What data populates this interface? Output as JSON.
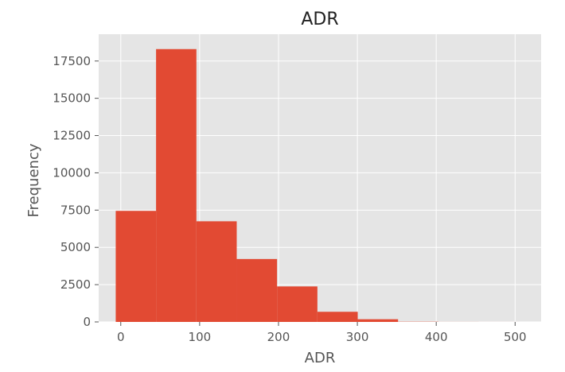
{
  "chart_data": {
    "type": "bar",
    "title": "ADR",
    "xlabel": "ADR",
    "ylabel": "Frequency",
    "xlim": [
      -28,
      533
    ],
    "ylim": [
      0,
      19300
    ],
    "xticks": [
      0,
      100,
      200,
      300,
      400,
      500
    ],
    "yticks": [
      0,
      2500,
      5000,
      7500,
      10000,
      12500,
      15000,
      17500
    ],
    "bins": [
      {
        "x0": -6.38,
        "x1": 44.76,
        "count": 7450
      },
      {
        "x0": 44.76,
        "x1": 95.9,
        "count": 18300
      },
      {
        "x0": 95.9,
        "x1": 147.04,
        "count": 6750
      },
      {
        "x0": 147.04,
        "x1": 198.18,
        "count": 4220
      },
      {
        "x0": 198.18,
        "x1": 249.32,
        "count": 2380
      },
      {
        "x0": 249.32,
        "x1": 300.46,
        "count": 680
      },
      {
        "x0": 300.46,
        "x1": 351.6,
        "count": 180
      },
      {
        "x0": 351.6,
        "x1": 402.74,
        "count": 15
      },
      {
        "x0": 402.74,
        "x1": 453.88,
        "count": 3
      },
      {
        "x0": 453.88,
        "x1": 505.02,
        "count": 1
      }
    ],
    "grid": true,
    "colors": {
      "bar": "#E24A33",
      "background": "#E5E5E5",
      "grid": "#FFFFFF"
    }
  }
}
